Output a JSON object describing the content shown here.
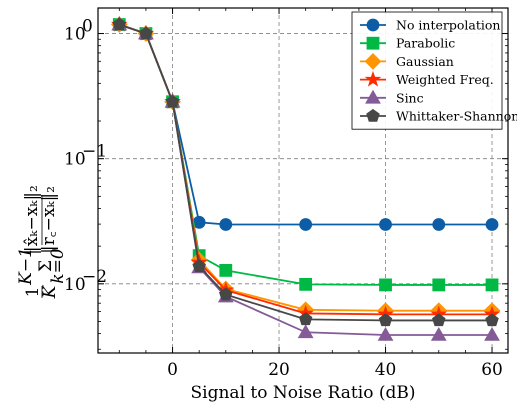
{
  "chart_data": {
    "type": "line",
    "xlabel": "Signal to Noise Ratio (dB)",
    "ylabel_parts": {
      "frac_num": "1",
      "frac_den": "K",
      "sum_top": "K−1",
      "sum_sign": "Σ",
      "sum_bottom": "k=0",
      "ratio_num": "‖x̂ₖ−xₖ‖₂",
      "ratio_den": "‖r꜀−xₖ‖₂"
    },
    "yscale": "log",
    "xlim": [
      -14,
      63
    ],
    "ylim": [
      0.0028,
      1.6
    ],
    "grid": true,
    "legend_position": "top-right",
    "x_ticks": [
      {
        "value": 0,
        "label": "0"
      },
      {
        "value": 20,
        "label": "20"
      },
      {
        "value": 40,
        "label": "40"
      },
      {
        "value": 60,
        "label": "60"
      }
    ],
    "y_ticks": [
      {
        "value": 1,
        "label": "10",
        "exp": "0"
      },
      {
        "value": 0.1,
        "label": "10",
        "exp": "−1"
      },
      {
        "value": 0.01,
        "label": "10",
        "exp": "−2"
      }
    ],
    "x": [
      -10,
      -5,
      0,
      5,
      10,
      25,
      40,
      50,
      60
    ],
    "series": [
      {
        "name": "No interpolation",
        "color": "#0C5DA5",
        "marker": "circle",
        "values": [
          1.18,
          1.0,
          0.285,
          0.031,
          0.0298,
          0.0298,
          0.0298,
          0.0298,
          0.0298
        ]
      },
      {
        "name": "Parabolic",
        "color": "#00B945",
        "marker": "square",
        "values": [
          1.18,
          1.0,
          0.285,
          0.0168,
          0.0128,
          0.0099,
          0.0098,
          0.0098,
          0.0098
        ]
      },
      {
        "name": "Gaussian",
        "color": "#FF9500",
        "marker": "diamond",
        "values": [
          1.18,
          1.0,
          0.285,
          0.0155,
          0.0091,
          0.0062,
          0.0061,
          0.0061,
          0.0061
        ]
      },
      {
        "name": "Weighted Freq.",
        "color": "#FF2C00",
        "marker": "star",
        "values": [
          1.18,
          1.0,
          0.285,
          0.0148,
          0.0089,
          0.0058,
          0.0057,
          0.0057,
          0.0057
        ]
      },
      {
        "name": "Sinc",
        "color": "#845B97",
        "marker": "triangle",
        "values": [
          1.18,
          1.0,
          0.285,
          0.0135,
          0.0079,
          0.0041,
          0.0039,
          0.0039,
          0.0039
        ]
      },
      {
        "name": "Whittaker-Shannon",
        "color": "#474747",
        "marker": "pentagon",
        "values": [
          1.18,
          1.0,
          0.285,
          0.0138,
          0.0082,
          0.0052,
          0.0051,
          0.0051,
          0.0051
        ]
      }
    ]
  }
}
